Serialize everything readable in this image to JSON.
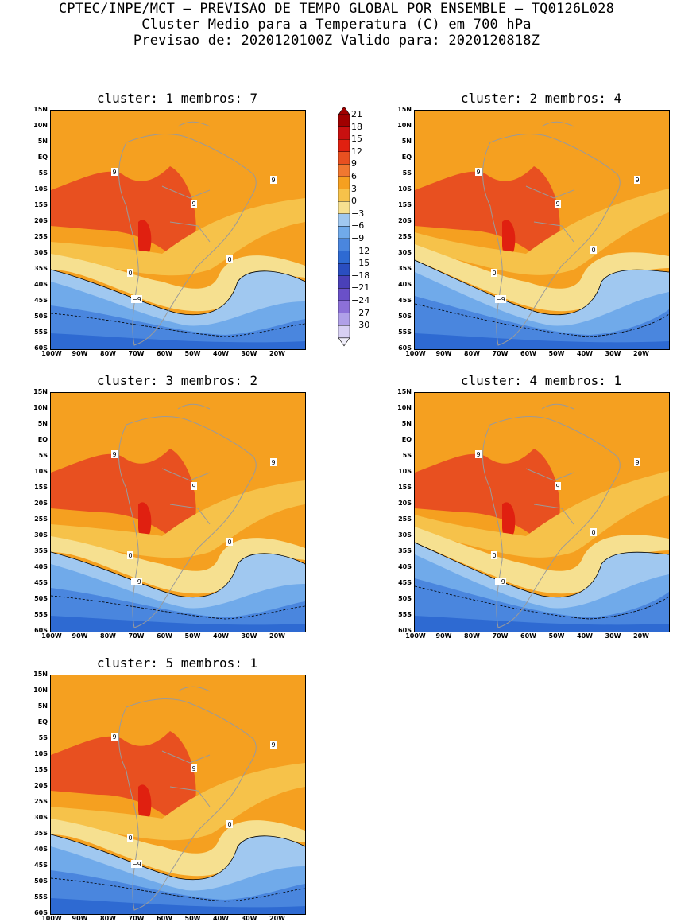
{
  "header": {
    "line1": "CPTEC/INPE/MCT – PREVISAO DE TEMPO GLOBAL POR ENSEMBLE – TQ0126L028",
    "line2": "Cluster Medio para a Temperatura (C) em 700 hPa",
    "line3": "Previsao de: 2020120100Z   Valido para: 2020120818Z"
  },
  "lat_ticks": [
    "15N",
    "10N",
    "5N",
    "EQ",
    "5S",
    "10S",
    "15S",
    "20S",
    "25S",
    "30S",
    "35S",
    "40S",
    "45S",
    "50S",
    "55S",
    "60S"
  ],
  "lon_ticks": [
    "100W",
    "90W",
    "80W",
    "70W",
    "60W",
    "50W",
    "40W",
    "30W",
    "20W"
  ],
  "colorbar": {
    "labels": [
      "21",
      "18",
      "15",
      "12",
      "9",
      "6",
      "3",
      "0",
      "−3",
      "−6",
      "−9",
      "−12",
      "−15",
      "−18",
      "−21",
      "−24",
      "−27",
      "−30"
    ],
    "colors": [
      "#a00000",
      "#c81010",
      "#e02010",
      "#e85020",
      "#f07830",
      "#f5a020",
      "#f6c24a",
      "#f6e090",
      "#a0c8f0",
      "#70aaea",
      "#4a86de",
      "#2e6ad2",
      "#2a4ec0",
      "#4a40b8",
      "#6a50c8",
      "#8c70d8",
      "#b0a0e8",
      "#d8d0f4"
    ]
  },
  "contour_labels": {
    "nine": "9",
    "zero": "0",
    "minus_nine": "−9"
  },
  "panels": [
    {
      "title": "cluster: 1   membros: 7"
    },
    {
      "title": "cluster: 2   membros: 4"
    },
    {
      "title": "cluster: 3   membros: 2"
    },
    {
      "title": "cluster: 4   membros: 1"
    },
    {
      "title": "cluster: 5   membros: 1"
    }
  ]
}
